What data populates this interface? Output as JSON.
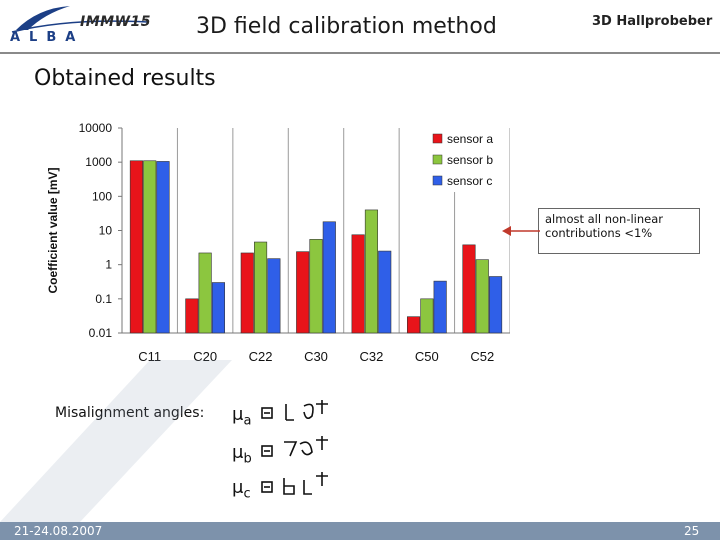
{
  "header": {
    "conference": "IMMW15",
    "brand": "ALBA",
    "title": "3D field calibration method",
    "right": "3D Hallprobeber"
  },
  "subtitle": "Obtained results",
  "annotation": "almost all non-linear contributions <1%",
  "misalignment": {
    "label": "Misalignment angles:",
    "angles": [
      {
        "symbol": "μ",
        "sub": "a"
      },
      {
        "symbol": "μ",
        "sub": "b"
      },
      {
        "symbol": "μ",
        "sub": "c"
      }
    ]
  },
  "footer": {
    "date": "21-24.08.2007",
    "page": "25"
  },
  "colors": {
    "sensor_a": "#e8141a",
    "sensor_b": "#8cc63f",
    "sensor_c": "#2f5fe8",
    "footer": "#7d92ab",
    "arrow": "#c0392b"
  },
  "chart_data": {
    "type": "bar",
    "scale": "log",
    "ylabel": "Coefficient value [mV]",
    "xlabel": "",
    "ylim": [
      0.01,
      10000
    ],
    "yticks": [
      "10000",
      "1000",
      "100",
      "10",
      "1",
      "0.1",
      "0.01"
    ],
    "categories": [
      "C11",
      "C20",
      "C22",
      "C30",
      "C32",
      "C50",
      "C52"
    ],
    "legend_position": "top-right",
    "grid": "vertical",
    "series": [
      {
        "name": "sensor a",
        "values": [
          1100,
          0.1,
          2.2,
          2.4,
          7.5,
          0.03,
          3.8
        ]
      },
      {
        "name": "sensor b",
        "values": [
          1100,
          2.2,
          4.6,
          5.5,
          40,
          0.1,
          1.4
        ]
      },
      {
        "name": "sensor c",
        "values": [
          1050,
          0.3,
          1.5,
          18,
          2.5,
          0.33,
          0.45
        ]
      }
    ]
  }
}
